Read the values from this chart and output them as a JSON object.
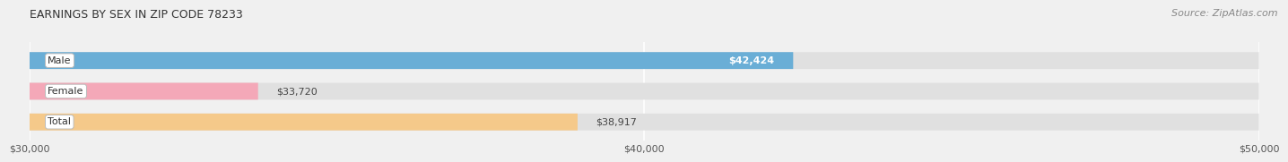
{
  "title": "EARNINGS BY SEX IN ZIP CODE 78233",
  "source": "Source: ZipAtlas.com",
  "categories": [
    "Male",
    "Female",
    "Total"
  ],
  "values": [
    42424,
    33720,
    38917
  ],
  "bar_colors": [
    "#6aaed6",
    "#f4a8b8",
    "#f5c98a"
  ],
  "bar_bg_color": "#e0e0e0",
  "xmin": 30000,
  "xmax": 50000,
  "xticks": [
    30000,
    40000,
    50000
  ],
  "xtick_labels": [
    "$30,000",
    "$40,000",
    "$50,000"
  ],
  "title_fontsize": 9,
  "source_fontsize": 8,
  "bar_label_fontsize": 8,
  "category_fontsize": 8,
  "tick_fontsize": 8,
  "bar_height": 0.55,
  "background_color": "#f0f0f0"
}
